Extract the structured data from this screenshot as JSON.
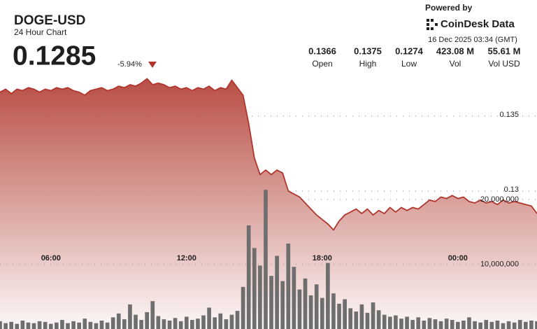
{
  "header": {
    "symbol": "DOGE-USD",
    "subtitle": "24 Hour Chart",
    "price": "0.1285",
    "change": "-5.94%",
    "powered_by": "Powered by",
    "brand": "CoinDesk Data",
    "timestamp": "16 Dec 2025 03:34 (GMT)",
    "stats": [
      {
        "value": "0.1366",
        "label": "Open"
      },
      {
        "value": "0.1375",
        "label": "High"
      },
      {
        "value": "0.1274",
        "label": "Low"
      },
      {
        "value": "423.08 M",
        "label": "Vol"
      },
      {
        "value": "55.61 M",
        "label": "Vol USD"
      }
    ]
  },
  "chart_data": {
    "type": "line",
    "color": "#b0362c",
    "area_color": "#b5453b",
    "grid": true,
    "values": [
      0.1366,
      0.1368,
      0.1365,
      0.1368,
      0.1367,
      0.1369,
      0.1368,
      0.1366,
      0.1368,
      0.1367,
      0.1369,
      0.1368,
      0.1369,
      0.1367,
      0.1366,
      0.1364,
      0.1367,
      0.1368,
      0.1369,
      0.1367,
      0.1368,
      0.137,
      0.1369,
      0.1371,
      0.137,
      0.1372,
      0.1375,
      0.1371,
      0.1372,
      0.1371,
      0.1369,
      0.137,
      0.1368,
      0.1369,
      0.1367,
      0.1369,
      0.1368,
      0.137,
      0.1367,
      0.1369,
      0.1368,
      0.1374,
      0.1369,
      0.1364,
      0.1345,
      0.1322,
      0.1311,
      0.1314,
      0.1311,
      0.1314,
      0.1312,
      0.13,
      0.1298,
      0.1296,
      0.1292,
      0.1288,
      0.1284,
      0.1281,
      0.1278,
      0.1274,
      0.128,
      0.1284,
      0.1286,
      0.1288,
      0.1285,
      0.1288,
      0.1284,
      0.1287,
      0.1285,
      0.1289,
      0.1286,
      0.1289,
      0.1287,
      0.1289,
      0.1288,
      0.1291,
      0.1294,
      0.1293,
      0.1296,
      0.1295,
      0.1297,
      0.1295,
      0.1296,
      0.1293,
      0.1292,
      0.1294,
      0.1292,
      0.1293,
      0.1291,
      0.1294,
      0.1292,
      0.1293,
      0.1292,
      0.1291,
      0.129,
      0.1285
    ],
    "volume_color": "#6e6e6e",
    "volume_values": [
      1200000,
      900000,
      1100000,
      800000,
      1300000,
      1000000,
      900000,
      1200000,
      1100000,
      800000,
      1000000,
      1400000,
      900000,
      1200000,
      1000000,
      1600000,
      1100000,
      900000,
      1300000,
      1000000,
      1800000,
      2400000,
      1500000,
      3800000,
      2200000,
      1400000,
      2600000,
      4300000,
      2000000,
      1500000,
      1300000,
      1700000,
      1200000,
      1900000,
      1400000,
      1600000,
      2100000,
      3300000,
      1800000,
      2400000,
      1500000,
      2200000,
      2800000,
      6500000,
      16000000,
      12500000,
      9800000,
      21500000,
      8200000,
      11300000,
      7400000,
      13200000,
      9600000,
      6100000,
      7800000,
      5200000,
      6900000,
      4800000,
      10200000,
      5500000,
      3900000,
      4600000,
      3200000,
      2700000,
      3800000,
      2500000,
      4100000,
      2900000,
      2200000,
      1900000,
      2100000,
      1600000,
      1900000,
      1400000,
      1800000,
      1300000,
      1700000,
      1500000,
      1200000,
      1600000,
      1400000,
      1100000,
      1300000,
      1800000,
      1200000,
      1000000,
      1400000,
      1100000,
      1300000,
      900000,
      1200000,
      1000000,
      1400000,
      1100000,
      1300000,
      1200000
    ],
    "xlim": [
      0,
      95
    ],
    "xticks": [
      {
        "value": 9,
        "label": "06:00"
      },
      {
        "value": 33,
        "label": "12:00"
      },
      {
        "value": 57,
        "label": "18:00"
      },
      {
        "value": 81,
        "label": "00:00"
      }
    ],
    "ylim": [
      0.12079,
      0.13808
    ],
    "yticks": [
      0.13,
      0.135
    ],
    "y2lim": [
      0,
      40000000
    ],
    "y2ticks": [
      {
        "value": 10000000,
        "label": "10,000,000"
      },
      {
        "value": 20000000,
        "label": "20,000,000"
      }
    ]
  }
}
